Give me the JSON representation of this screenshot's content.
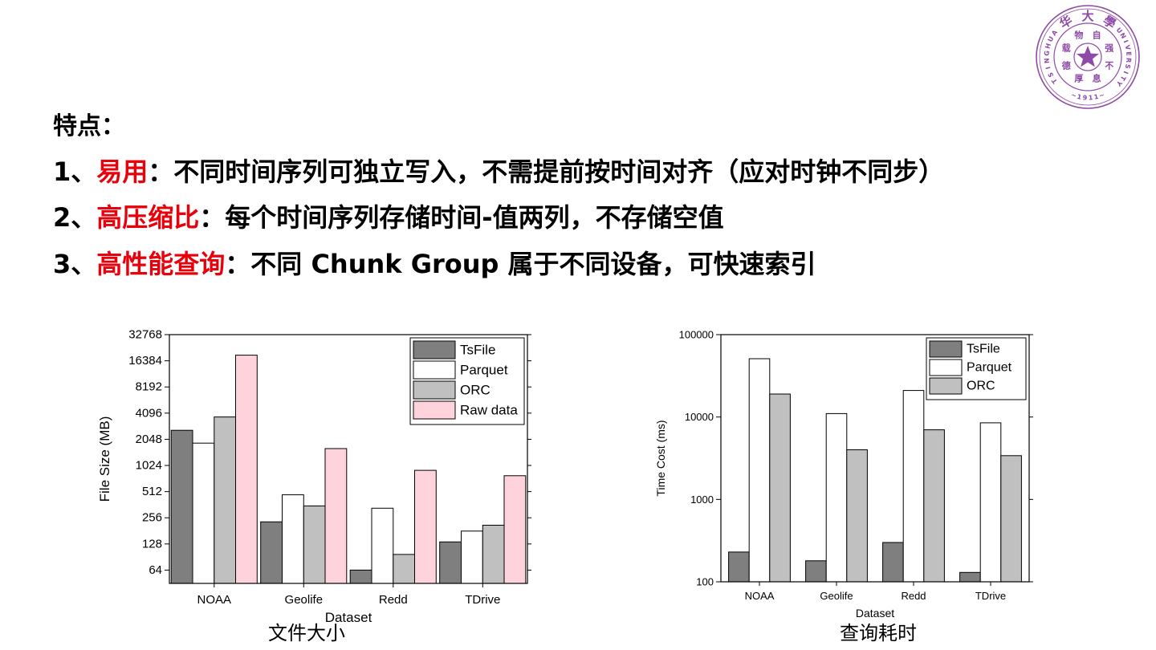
{
  "slide": {
    "heading": "特点：",
    "points": [
      {
        "num": "1、",
        "highlight": "易用",
        "text": "：不同时间序列可独立写入，不需提前按时间对齐（应对时钟不同步）"
      },
      {
        "num": "2、",
        "highlight": "高压缩比",
        "text": "：每个时间序列存储时间-值两列，不存储空值"
      },
      {
        "num": "3、",
        "highlight": "高性能查询",
        "text": "：不同 Chunk Group 属于不同设备，可快速索引"
      }
    ],
    "captions": {
      "file_size": "文件大小",
      "query_time": "查询耗时"
    },
    "seal": {
      "chinese": [
        "华",
        "大",
        "學"
      ],
      "left_text": "TSINGHUA",
      "right_text": "UNIVERSITY",
      "year": "~1911~",
      "motto": [
        "自",
        "强",
        "不",
        "息",
        "厚",
        "德",
        "载",
        "物"
      ],
      "color": "#8e4aa6"
    }
  },
  "colors": {
    "tsfile": "#7f7f7f",
    "parquet": "#ffffff",
    "orc": "#c0c0c0",
    "raw_data": "#ffd3dc",
    "highlight": "#e8000b",
    "axis": "#000000"
  },
  "chart_data": [
    {
      "type": "bar",
      "xlabel": "Dataset",
      "ylabel": "File Size (MB)",
      "yscale": "log2",
      "ylim": [
        45,
        32768
      ],
      "y_ticks": [
        64,
        128,
        256,
        512,
        1024,
        2048,
        4096,
        8192,
        16384,
        32768
      ],
      "categories": [
        "NOAA",
        "Geolife",
        "Redd",
        "TDrive"
      ],
      "legend_position": "top-right",
      "series": [
        {
          "name": "TsFile",
          "color": "#7f7f7f",
          "values": [
            2600,
            230,
            64,
            135
          ]
        },
        {
          "name": "Parquet",
          "color": "#ffffff",
          "values": [
            1850,
            470,
            330,
            180
          ]
        },
        {
          "name": "ORC",
          "color": "#c0c0c0",
          "values": [
            3700,
            350,
            97,
            210
          ]
        },
        {
          "name": "Raw data",
          "color": "#ffd3dc",
          "values": [
            19000,
            1600,
            900,
            780
          ]
        }
      ]
    },
    {
      "type": "bar",
      "xlabel": "Dataset",
      "ylabel": "Time Cost (ms)",
      "yscale": "log10",
      "ylim": [
        100,
        100000
      ],
      "y_ticks": [
        100,
        1000,
        10000,
        100000
      ],
      "categories": [
        "NOAA",
        "Geolife",
        "Redd",
        "TDrive"
      ],
      "legend_position": "top-right",
      "series": [
        {
          "name": "TsFile",
          "color": "#7f7f7f",
          "values": [
            230,
            180,
            300,
            130
          ]
        },
        {
          "name": "Parquet",
          "color": "#ffffff",
          "values": [
            51000,
            11000,
            21000,
            8500
          ]
        },
        {
          "name": "ORC",
          "color": "#c0c0c0",
          "values": [
            19000,
            4000,
            7000,
            3400
          ]
        }
      ]
    }
  ]
}
